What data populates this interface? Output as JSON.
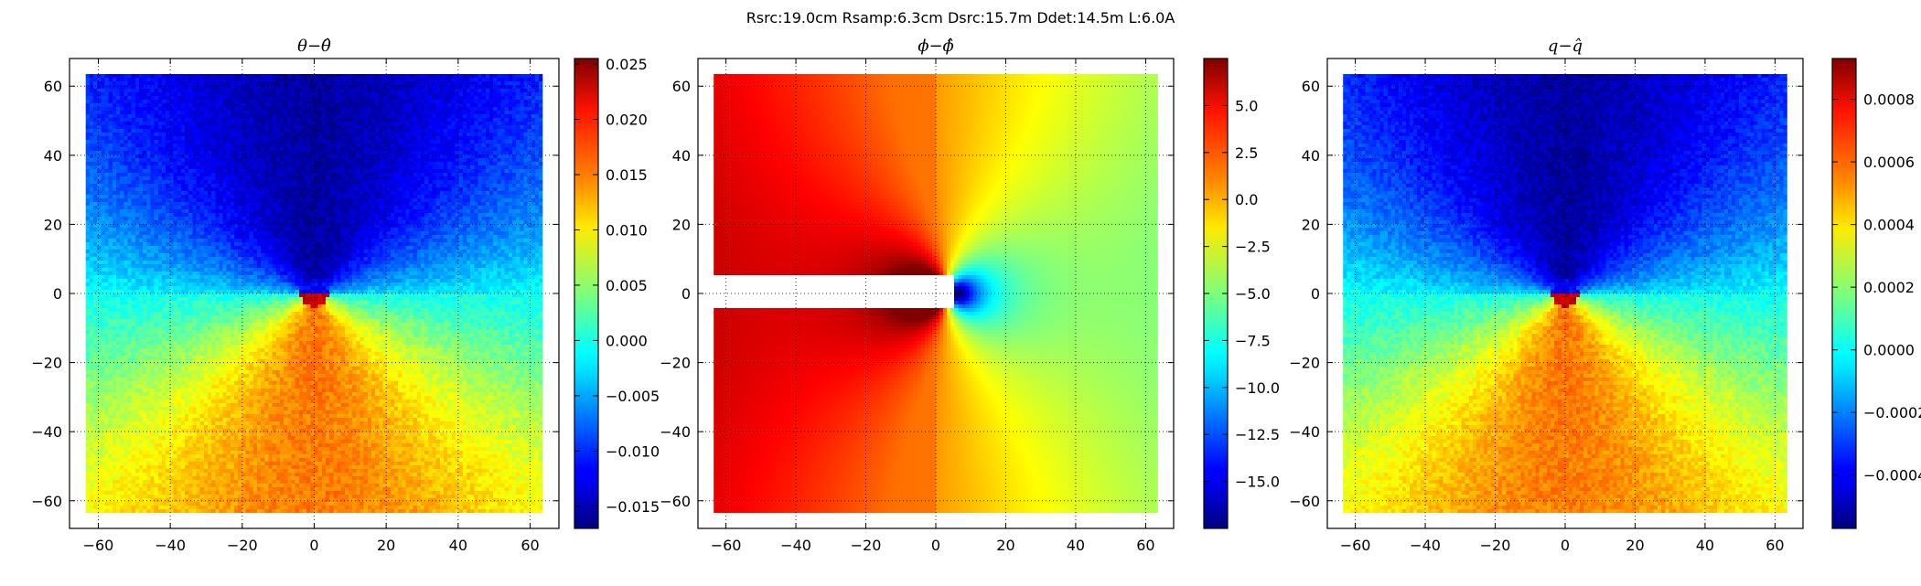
{
  "figure": {
    "suptitle": "Rsrc:19.0cm Rsamp:6.3cm Dsrc:15.7m Ddet:14.5m L:6.0A"
  },
  "chart_data": [
    {
      "type": "heatmap",
      "title": "θ−θ̂",
      "xlim": [
        -68,
        68
      ],
      "ylim": [
        -68,
        68
      ],
      "data_extent": [
        -63.5,
        63.5
      ],
      "xticks": [
        -60,
        -40,
        -20,
        0,
        20,
        40,
        60
      ],
      "yticks": [
        -60,
        -40,
        -20,
        0,
        20,
        40,
        60
      ],
      "grid": true,
      "pattern": "cone",
      "colormap": "jet",
      "colorbar": {
        "vmin": -0.017,
        "vmax": 0.0255,
        "ticks": [
          -0.015,
          -0.01,
          -0.005,
          0.0,
          0.005,
          0.01,
          0.015,
          0.02,
          0.025
        ],
        "tick_labels": [
          "−0.015",
          "−0.010",
          "−0.005",
          "0.000",
          "0.005",
          "0.010",
          "0.015",
          "0.020",
          "0.025"
        ]
      }
    },
    {
      "type": "heatmap",
      "title": "ϕ−ϕ̂",
      "xlim": [
        -68,
        68
      ],
      "ylim": [
        -68,
        68
      ],
      "data_extent": [
        -63.5,
        63.5
      ],
      "xticks": [
        -60,
        -40,
        -20,
        0,
        20,
        40,
        60
      ],
      "yticks": [
        -60,
        -40,
        -20,
        0,
        20,
        40,
        60
      ],
      "grid": true,
      "pattern": "dipole",
      "masked_region": {
        "x": [
          -63.5,
          5
        ],
        "y": [
          -4.5,
          5
        ]
      },
      "colormap": "jet",
      "colorbar": {
        "vmin": -17.5,
        "vmax": 7.5,
        "ticks": [
          -15.0,
          -12.5,
          -10.0,
          -7.5,
          -5.0,
          -2.5,
          0.0,
          2.5,
          5.0
        ],
        "tick_labels": [
          "−15.0",
          "−12.5",
          "−10.0",
          "−7.5",
          "−5.0",
          "−2.5",
          "0.0",
          "2.5",
          "5.0"
        ]
      }
    },
    {
      "type": "heatmap",
      "title": "q−q̂",
      "xlim": [
        -68,
        68
      ],
      "ylim": [
        -68,
        68
      ],
      "data_extent": [
        -63.5,
        63.5
      ],
      "xticks": [
        -60,
        -40,
        -20,
        0,
        20,
        40,
        60
      ],
      "yticks": [
        -60,
        -40,
        -20,
        0,
        20,
        40,
        60
      ],
      "grid": true,
      "pattern": "cone",
      "colormap": "jet",
      "colorbar": {
        "vmin": -0.00057,
        "vmax": 0.00093,
        "ticks": [
          -0.0004,
          -0.0002,
          0.0,
          0.0002,
          0.0004,
          0.0006,
          0.0008
        ],
        "tick_labels": [
          "−0.0004",
          "−0.0002",
          "0.0000",
          "0.0002",
          "0.0004",
          "0.0006",
          "0.0008"
        ]
      }
    }
  ]
}
